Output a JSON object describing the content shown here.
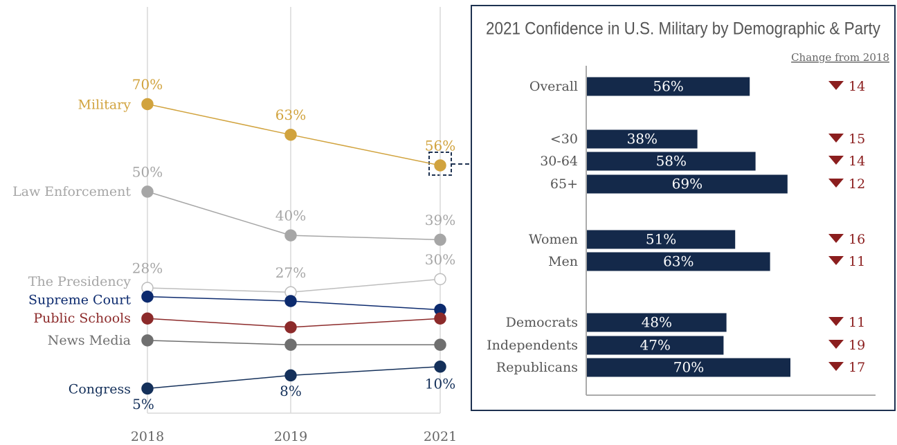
{
  "chart_data": [
    {
      "type": "line",
      "categories": [
        "2018",
        "2019",
        "2021"
      ],
      "ylim": [
        0,
        90
      ],
      "series": [
        {
          "name": "Military",
          "color": "#d1a33e",
          "values": [
            70,
            63,
            56
          ],
          "value_labels": [
            "70%",
            "63%",
            "56%"
          ]
        },
        {
          "name": "Law Enforcement",
          "color": "#a6a6a6",
          "values": [
            50,
            40,
            39
          ],
          "value_labels": [
            "50%",
            "40%",
            "39%"
          ]
        },
        {
          "name": "The Presidency",
          "color": "#bdbdbd",
          "marker_fill": "#ffffff",
          "values": [
            28,
            27,
            30
          ],
          "value_labels": [
            "28%",
            "27%",
            "30%"
          ]
        },
        {
          "name": "Supreme Court",
          "color": "#0c2a6e",
          "values": [
            26,
            25,
            23
          ]
        },
        {
          "name": "Public Schools",
          "color": "#8c2a2a",
          "values": [
            21,
            19,
            21
          ]
        },
        {
          "name": "News Media",
          "color": "#6f6f6f",
          "values": [
            16,
            15,
            15
          ]
        },
        {
          "name": "Congress",
          "color": "#14305a",
          "values": [
            5,
            8,
            10
          ],
          "value_labels": [
            "5%",
            "8%",
            "10%"
          ]
        }
      ]
    },
    {
      "type": "bar",
      "title": "2021 Confidence in U.S. Military by Demographic & Party",
      "change_label": "Change from 2018",
      "categories": [
        "Overall",
        "<30",
        "30-64",
        "65+",
        "Women",
        "Men",
        "Democrats",
        "Independents",
        "Republicans"
      ],
      "values": [
        56,
        38,
        58,
        69,
        51,
        63,
        48,
        47,
        70
      ],
      "value_labels": [
        "56%",
        "38%",
        "58%",
        "69%",
        "51%",
        "63%",
        "48%",
        "47%",
        "70%"
      ],
      "changes": [
        14,
        15,
        14,
        12,
        16,
        11,
        11,
        19,
        17
      ],
      "color": "#14294a",
      "change_color": "#8b1e1e",
      "xlim": [
        0,
        100
      ]
    }
  ]
}
